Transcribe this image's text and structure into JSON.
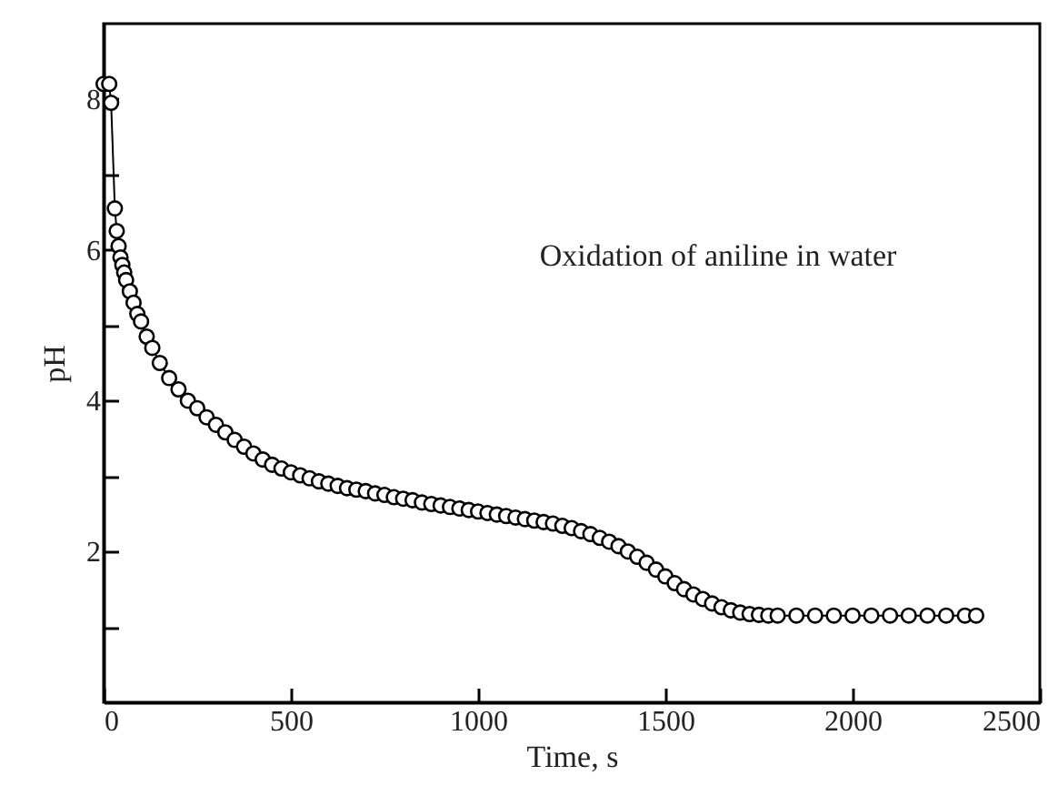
{
  "chart_data": {
    "type": "line",
    "xlabel": "Time, s",
    "ylabel": "pH",
    "annotations": [
      "Oxidation of aniline in water"
    ],
    "x": [
      0,
      15,
      20,
      30,
      35,
      40,
      45,
      50,
      55,
      60,
      70,
      80,
      90,
      100,
      115,
      130,
      150,
      175,
      200,
      225,
      250,
      275,
      300,
      325,
      350,
      375,
      400,
      425,
      450,
      475,
      500,
      525,
      550,
      575,
      600,
      625,
      650,
      675,
      700,
      725,
      750,
      775,
      800,
      825,
      850,
      875,
      900,
      925,
      950,
      975,
      1000,
      1025,
      1050,
      1075,
      1100,
      1125,
      1150,
      1175,
      1200,
      1225,
      1250,
      1275,
      1300,
      1325,
      1350,
      1375,
      1400,
      1425,
      1450,
      1475,
      1500,
      1525,
      1550,
      1575,
      1600,
      1625,
      1650,
      1675,
      1700,
      1725,
      1750,
      1775,
      1800,
      1850,
      1900,
      1950,
      2000,
      2050,
      2100,
      2150,
      2200,
      2250,
      2300,
      2330
    ],
    "series": [
      {
        "color": "#000000",
        "values": [
          8.2,
          8.2,
          7.95,
          6.55,
          6.25,
          6.05,
          5.9,
          5.8,
          5.7,
          5.6,
          5.45,
          5.3,
          5.15,
          5.05,
          4.85,
          4.7,
          4.5,
          4.3,
          4.15,
          4.0,
          3.9,
          3.78,
          3.68,
          3.58,
          3.48,
          3.39,
          3.3,
          3.22,
          3.15,
          3.1,
          3.05,
          3.01,
          2.97,
          2.93,
          2.9,
          2.87,
          2.84,
          2.82,
          2.8,
          2.77,
          2.75,
          2.72,
          2.7,
          2.68,
          2.65,
          2.63,
          2.61,
          2.59,
          2.57,
          2.55,
          2.53,
          2.51,
          2.49,
          2.47,
          2.45,
          2.43,
          2.41,
          2.39,
          2.37,
          2.34,
          2.31,
          2.27,
          2.23,
          2.18,
          2.13,
          2.07,
          2.0,
          1.93,
          1.85,
          1.76,
          1.67,
          1.58,
          1.5,
          1.43,
          1.37,
          1.31,
          1.26,
          1.22,
          1.19,
          1.17,
          1.16,
          1.15,
          1.15,
          1.15,
          1.15,
          1.15,
          1.15,
          1.15,
          1.15,
          1.15,
          1.15,
          1.15,
          1.15,
          1.15
        ]
      }
    ],
    "xlim": [
      0,
      2500
    ],
    "xticks": [
      0,
      500,
      1000,
      1500,
      2000,
      2500
    ],
    "ylim": [
      0,
      9
    ],
    "yticks": [
      {
        "value": 1,
        "label": null
      },
      2,
      {
        "value": 3,
        "label": null
      },
      4,
      {
        "value": 5,
        "label": null
      },
      6,
      {
        "value": 7,
        "label": null
      },
      8
    ],
    "marker": "circle",
    "line_style": "solid",
    "grid": false
  }
}
